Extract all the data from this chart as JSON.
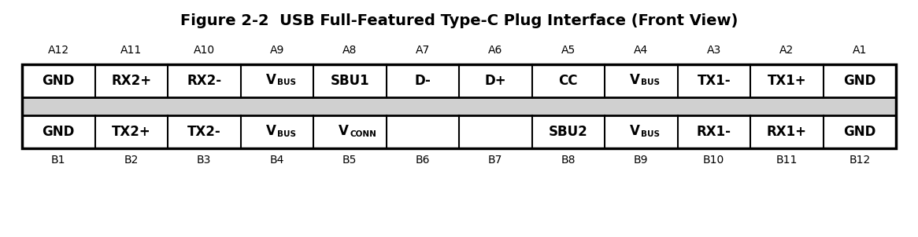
{
  "title": "Figure 2-2  USB Full-Featured Type-C Plug Interface (Front View)",
  "top_labels": [
    "A12",
    "A11",
    "A10",
    "A9",
    "A8",
    "A7",
    "A6",
    "A5",
    "A4",
    "A3",
    "A2",
    "A1"
  ],
  "bottom_labels": [
    "B1",
    "B2",
    "B3",
    "B4",
    "B5",
    "B6",
    "B7",
    "B8",
    "B9",
    "B10",
    "B11",
    "B12"
  ],
  "row_top_text": [
    "GND",
    "RX2+",
    "RX2-",
    "VBUS",
    "SBU1",
    "D-",
    "D+",
    "CC",
    "VBUS",
    "TX1-",
    "TX1+",
    "GND"
  ],
  "row_bottom_text": [
    "GND",
    "TX2+",
    "TX2-",
    "VBUS",
    "VCONN",
    "",
    "",
    "SBU2",
    "VBUS",
    "RX1-",
    "RX1+",
    "GND"
  ],
  "middle_row_bg": "#d0d0d0",
  "border_color": "#000000",
  "text_color": "#000000",
  "background_color": "#ffffff",
  "title_fontsize": 14,
  "label_fontsize": 10,
  "cell_fontsize": 12
}
